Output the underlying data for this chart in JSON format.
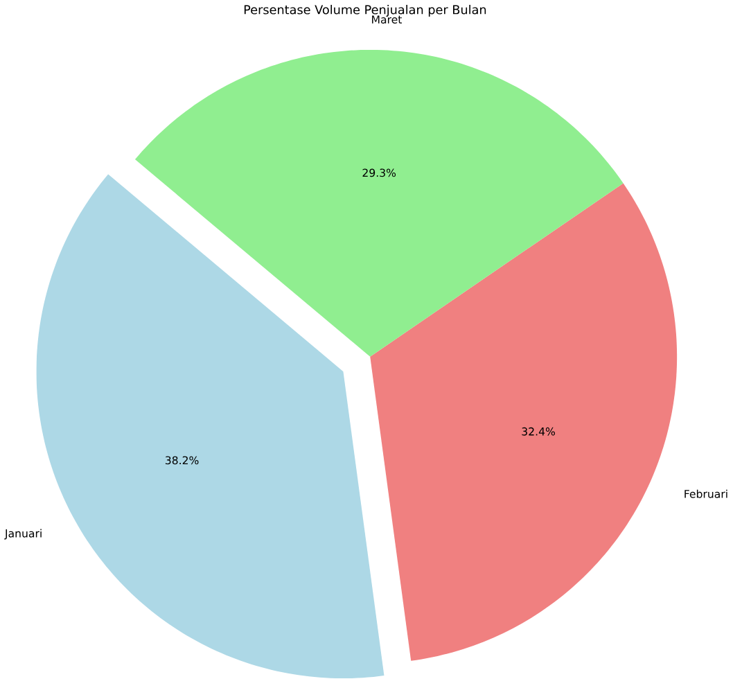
{
  "chart_data": {
    "type": "pie",
    "title": "Persentase Volume Penjualan per Bulan",
    "categories": [
      "Januari",
      "Februari",
      "Maret"
    ],
    "values": [
      38.2,
      32.4,
      29.3
    ],
    "value_labels": [
      "38.2%",
      "32.4%",
      "29.3%"
    ],
    "colors": [
      "#add8e6",
      "#f08080",
      "#90ee90"
    ]
  }
}
